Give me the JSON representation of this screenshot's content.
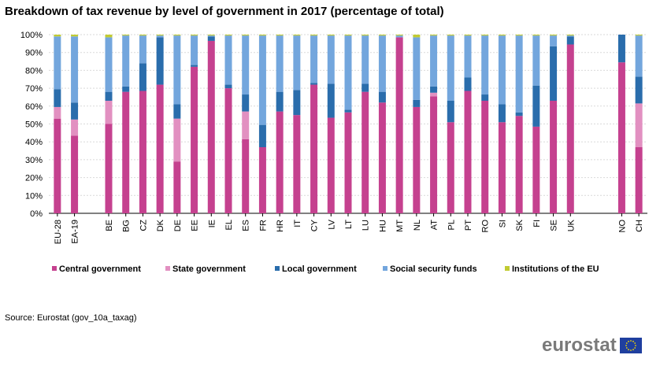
{
  "chart_data": {
    "type": "bar",
    "stacked": true,
    "title": "Breakdown of tax revenue by level of government in 2017 (percentage of total)",
    "ylim": [
      0,
      100
    ],
    "y_ticks": [
      "0%",
      "10%",
      "20%",
      "30%",
      "40%",
      "50%",
      "60%",
      "70%",
      "80%",
      "90%",
      "100%"
    ],
    "grid": true,
    "legend_position": "bottom",
    "categories": [
      "EU-28",
      "EA-19",
      "",
      "BE",
      "BG",
      "CZ",
      "DK",
      "DE",
      "EE",
      "IE",
      "EL",
      "ES",
      "FR",
      "HR",
      "IT",
      "CY",
      "LV",
      "LT",
      "LU",
      "HU",
      "MT",
      "NL",
      "AT",
      "PL",
      "PT",
      "RO",
      "SI",
      "SK",
      "FI",
      "SE",
      "UK",
      "",
      "",
      "NO",
      "CH"
    ],
    "series": [
      {
        "name": "Central government",
        "color": "#c5418f",
        "values": [
          53,
          43.5,
          null,
          50,
          68,
          68.5,
          72,
          29,
          82,
          96.5,
          70,
          41.5,
          37,
          57,
          55,
          72,
          53.5,
          56.5,
          68,
          62,
          98.5,
          59.5,
          65.5,
          51,
          68.5,
          63,
          51,
          54.5,
          48.5,
          63,
          94.5,
          null,
          null,
          84.5,
          37
        ]
      },
      {
        "name": "State government",
        "color": "#e290c1",
        "values": [
          6.5,
          9,
          null,
          13,
          0,
          0,
          0,
          24,
          0,
          0,
          0,
          15.5,
          0,
          0,
          0,
          0,
          0,
          0,
          0,
          0,
          0,
          0,
          2,
          0,
          0,
          0,
          0,
          0,
          0,
          0,
          0,
          null,
          null,
          0,
          24.5
        ]
      },
      {
        "name": "Local government",
        "color": "#2a6dac",
        "values": [
          10,
          9.5,
          null,
          5,
          3,
          15.5,
          26.5,
          8,
          1,
          2.5,
          2,
          9.5,
          12.5,
          11,
          14,
          1,
          19,
          1.5,
          4.5,
          6,
          0,
          4,
          3.5,
          12,
          7.5,
          3.5,
          10,
          2,
          23,
          30.5,
          4.5,
          null,
          null,
          15.5,
          15
        ]
      },
      {
        "name": "Social security funds",
        "color": "#73a6dd",
        "values": [
          29.5,
          37,
          null,
          30.5,
          28.5,
          15.5,
          1,
          38.5,
          16.5,
          0.5,
          27.5,
          33,
          50,
          31.5,
          30.5,
          26.5,
          27,
          41.5,
          27,
          31.5,
          1,
          35,
          28.5,
          36.5,
          23.5,
          33,
          38.5,
          43,
          28,
          6,
          0.5,
          null,
          null,
          0,
          23
        ]
      },
      {
        "name": "Institutions of the EU",
        "color": "#c1cb32",
        "values": [
          1,
          1,
          null,
          1.5,
          0.5,
          0.5,
          0.5,
          0.5,
          0.5,
          0.5,
          0.5,
          0.5,
          0.5,
          0.5,
          0.5,
          0.5,
          0.5,
          0.5,
          0.5,
          0.5,
          0.5,
          1.5,
          0.5,
          0.5,
          0.5,
          0.5,
          0.5,
          0.5,
          0.5,
          0.5,
          0.5,
          null,
          null,
          0,
          0.5
        ]
      }
    ]
  },
  "source": "Source: Eurostat (gov_10a_taxag)",
  "logo_text": "eurostat"
}
